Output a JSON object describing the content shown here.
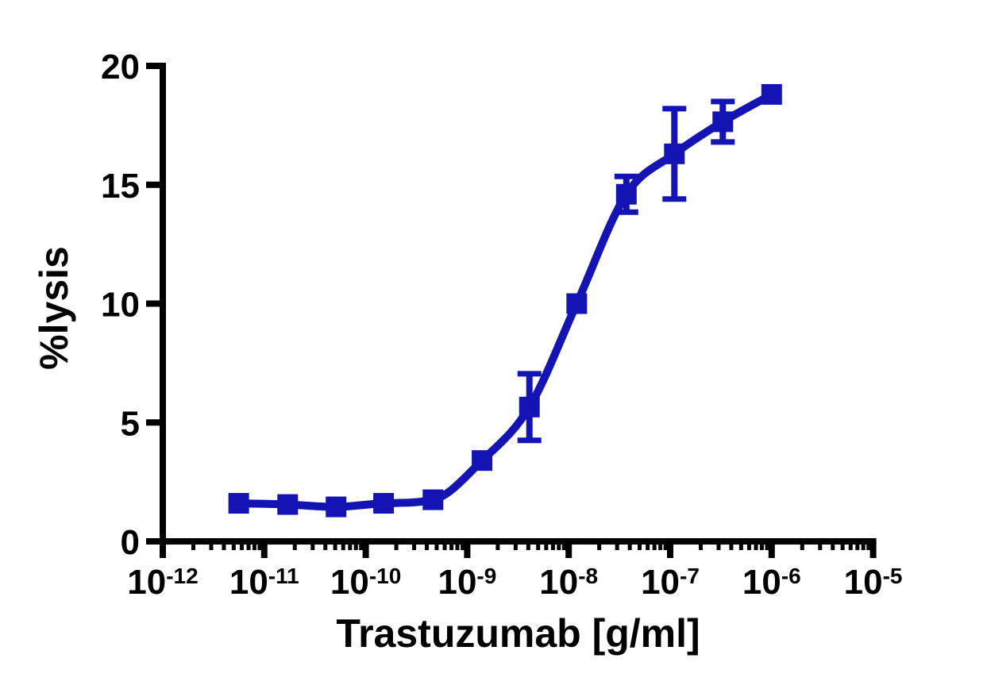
{
  "figure": {
    "background": "#ffffff",
    "axis_color": "#000000",
    "accent_color": "#1414B4"
  },
  "chart_data": {
    "type": "scatter",
    "title": "",
    "xlabel": "Trastuzumab [g/ml]",
    "ylabel": "%lysis",
    "x_scale": "log10",
    "xlim_log10": [
      -12,
      -5
    ],
    "ylim": [
      0,
      20
    ],
    "y_ticks": [
      0,
      5,
      10,
      15,
      20
    ],
    "x_major_tick_exponents": [
      -12,
      -11,
      -10,
      -9,
      -8,
      -7,
      -6,
      -5
    ],
    "x_tick_label_base": "10",
    "log_minor_ticks": true,
    "grid": false,
    "legend": "none",
    "series": [
      {
        "name": "Trastuzumab",
        "color": "#1414B4",
        "marker": "square",
        "curve": "sigmoidal-fit-through-points",
        "points": [
          {
            "conc_g_ml": 5.6e-12,
            "lysis_pct": 1.6,
            "sem": null
          },
          {
            "conc_g_ml": 1.7e-11,
            "lysis_pct": 1.55,
            "sem": null
          },
          {
            "conc_g_ml": 5.1e-11,
            "lysis_pct": 1.45,
            "sem": null
          },
          {
            "conc_g_ml": 1.5e-10,
            "lysis_pct": 1.6,
            "sem": null
          },
          {
            "conc_g_ml": 4.6e-10,
            "lysis_pct": 1.75,
            "sem": null
          },
          {
            "conc_g_ml": 1.4e-09,
            "lysis_pct": 3.4,
            "sem": null
          },
          {
            "conc_g_ml": 4.1e-09,
            "lysis_pct": 5.65,
            "sem": 1.4
          },
          {
            "conc_g_ml": 1.2e-08,
            "lysis_pct": 10.0,
            "sem": null
          },
          {
            "conc_g_ml": 3.7e-08,
            "lysis_pct": 14.6,
            "sem": 0.75
          },
          {
            "conc_g_ml": 1.1e-07,
            "lysis_pct": 16.3,
            "sem": 1.9
          },
          {
            "conc_g_ml": 3.3e-07,
            "lysis_pct": 17.65,
            "sem": 0.85
          },
          {
            "conc_g_ml": 1e-06,
            "lysis_pct": 18.8,
            "sem": null
          }
        ]
      }
    ]
  }
}
